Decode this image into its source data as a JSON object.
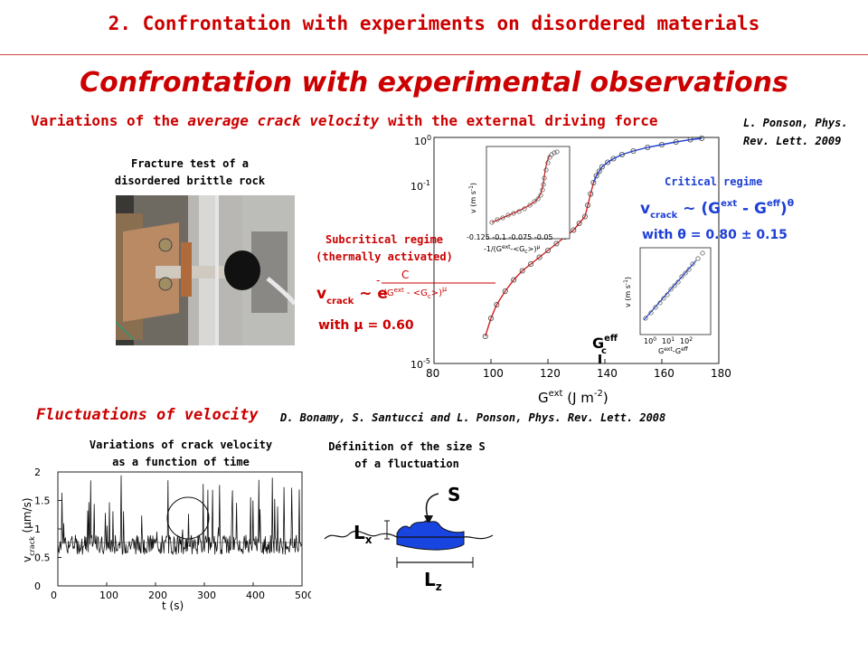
{
  "header": {
    "title": "2. Confrontation with experiments on disordered materials"
  },
  "main_title": "Confrontation with experimental observations",
  "subtitle": {
    "pre": "Variations of the ",
    "em": "average crack velocity",
    "post": " with the external driving force"
  },
  "reference_1": "L. Ponson, Phys. Rev. Lett. 2009",
  "rock_caption": {
    "line1": "Fracture test of a",
    "line2": "disordered brittle rock"
  },
  "subcritical": {
    "line1": "Subcritical regime",
    "line2": "(thermally activated)",
    "formula_lhs": "v",
    "formula_sub": "crack",
    "formula_mid": "~ e",
    "formula_num": "C",
    "formula_den": "(G",
    "mu_line": "with μ = 0.60"
  },
  "critical": {
    "label": "Critical regime",
    "theta_line": "with θ = 0.80 ± 0.15"
  },
  "fluctuations_title": "Fluctuations of velocity",
  "reference_2": "D. Bonamy, S. Santucci and L. Ponson, Phys. Rev. Lett. 2008",
  "velocity_caption": {
    "line1": "Variations of crack velocity",
    "line2": "as a function of time"
  },
  "size_caption": {
    "line1": "Définition of the size S",
    "line2": "of a fluctuation"
  },
  "size_labels": {
    "S": "S",
    "Lx": "L",
    "Lx_sub": "x",
    "Lz": "L",
    "Lz_sub": "z"
  },
  "chart_data": [
    {
      "type": "scatter",
      "xlabel": "G^ext (J m^-2)",
      "ylabel": "",
      "xlim": [
        80,
        180
      ],
      "ylog": true,
      "ylim_exponents": [
        -5,
        0
      ],
      "x_ticks": [
        "80",
        "100",
        "120",
        "140",
        "160",
        "180"
      ],
      "y_ticks": [
        "10^-5",
        "10^-1",
        "10^0"
      ],
      "annotation": "G_c^eff",
      "annotation_x": 140,
      "series": [
        {
          "points": [
            [
              98,
              -4.4
            ],
            [
              100,
              -4.0
            ],
            [
              102,
              -3.7
            ],
            [
              105,
              -3.4
            ],
            [
              108,
              -3.15
            ],
            [
              111,
              -2.95
            ],
            [
              114,
              -2.8
            ],
            [
              117,
              -2.65
            ],
            [
              120,
              -2.5
            ],
            [
              123,
              -2.35
            ],
            [
              126,
              -2.2
            ],
            [
              129,
              -2.05
            ],
            [
              131,
              -1.9
            ],
            [
              133,
              -1.75
            ],
            [
              134,
              -1.5
            ],
            [
              135,
              -1.25
            ],
            [
              136,
              -1.0
            ],
            [
              137,
              -0.85
            ],
            [
              138,
              -0.75
            ],
            [
              139,
              -0.65
            ],
            [
              141,
              -0.55
            ],
            [
              143,
              -0.47
            ],
            [
              146,
              -0.38
            ],
            [
              150,
              -0.3
            ],
            [
              155,
              -0.22
            ],
            [
              160,
              -0.16
            ],
            [
              165,
              -0.1
            ],
            [
              170,
              -0.05
            ],
            [
              174,
              -0.02
            ]
          ]
        }
      ]
    },
    {
      "type": "scatter",
      "title": "",
      "xlabel": "-1/(G^ext - <G_c>)^μ",
      "ylabel": "v (m s^-1)",
      "x_ticks": [
        "-0.125",
        "-0.1",
        "-0.075",
        "-0.05"
      ],
      "y_ticks": [
        "10^0",
        "10^-1",
        "10^-2",
        "10^-3",
        "10^-4",
        "10^-5"
      ]
    },
    {
      "type": "scatter",
      "xlabel": "G^ext - G_c^eff",
      "ylabel": "v (m s^-1)",
      "x_ticks": [
        "10^0",
        "10^1",
        "10^2"
      ],
      "y_ticks": [
        "10^0",
        "10^-1",
        "10^-2"
      ]
    },
    {
      "type": "line",
      "xlabel": "t (s)",
      "ylabel": "v_crack (μm/s)",
      "xlim": [
        0,
        500
      ],
      "ylim": [
        0,
        2
      ],
      "x_ticks": [
        "0",
        "100",
        "200",
        "300",
        "400",
        "500"
      ],
      "y_ticks": [
        "0",
        "0.5",
        "1",
        "1.5",
        "2"
      ]
    }
  ]
}
